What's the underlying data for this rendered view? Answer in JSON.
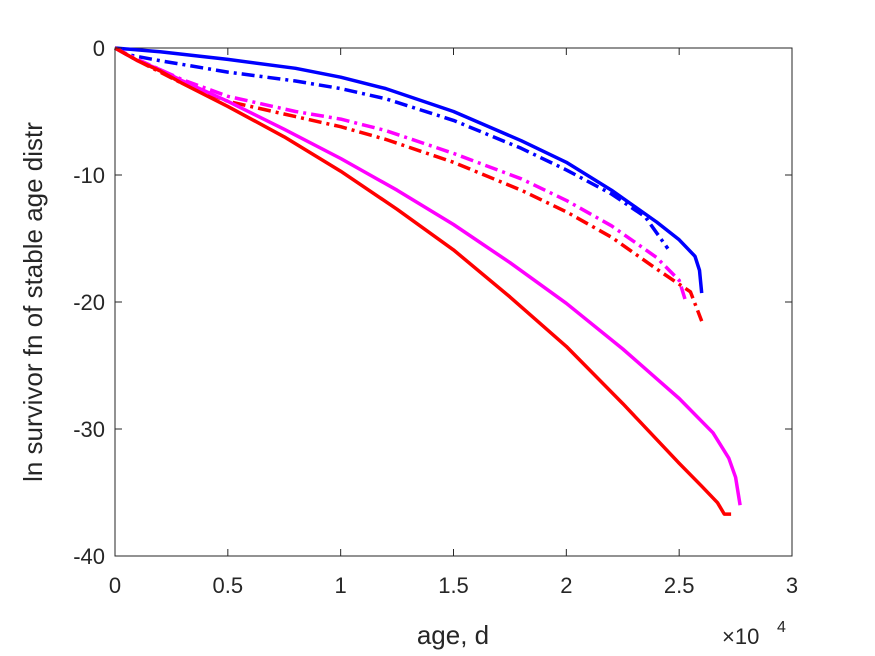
{
  "chart_data": {
    "type": "line",
    "title": "",
    "xlabel": "age, d",
    "ylabel": "ln survivor fn of stable age distr",
    "x_exponent_label": "×10",
    "x_exponent_power": "4",
    "xlim": [
      0,
      30000
    ],
    "ylim": [
      -40,
      0
    ],
    "x_ticks": [
      0,
      5000,
      10000,
      15000,
      20000,
      25000,
      30000
    ],
    "x_tick_labels": [
      "0",
      "0.5",
      "1",
      "1.5",
      "2",
      "2.5",
      "3"
    ],
    "y_ticks": [
      0,
      -10,
      -20,
      -30,
      -40
    ],
    "y_tick_labels": [
      "0",
      "-10",
      "-20",
      "-30",
      "-40"
    ],
    "grid": false,
    "series": [
      {
        "color": "#0000ff",
        "style": "solid",
        "x": [
          0,
          2000,
          5000,
          8000,
          10000,
          12000,
          15000,
          18000,
          20000,
          22000,
          24000,
          25000,
          25700,
          25900,
          26000
        ],
        "y": [
          0,
          -0.3,
          -0.9,
          -1.6,
          -2.3,
          -3.2,
          -5.0,
          -7.3,
          -9.0,
          -11.2,
          -13.7,
          -15.1,
          -16.4,
          -17.5,
          -19.3
        ]
      },
      {
        "color": "#0000ff",
        "style": "dashdot",
        "x": [
          0,
          500,
          2000,
          5000,
          8000,
          10000,
          12000,
          15000,
          18000,
          20000,
          22000,
          23500,
          24500
        ],
        "y": [
          0,
          -0.5,
          -1.0,
          -1.9,
          -2.6,
          -3.2,
          -4.0,
          -5.7,
          -7.9,
          -9.6,
          -11.5,
          -13.3,
          -15.8
        ]
      },
      {
        "color": "#ff00ff",
        "style": "dashdot",
        "x": [
          0,
          1000,
          2000,
          3000,
          5000,
          8000,
          10000,
          12000,
          15000,
          18000,
          20000,
          22000,
          24000,
          25000,
          25300
        ],
        "y": [
          0,
          -0.9,
          -1.7,
          -2.5,
          -3.8,
          -5.0,
          -5.6,
          -6.5,
          -8.3,
          -10.3,
          -12.0,
          -14.0,
          -16.5,
          -18.3,
          -20.0
        ]
      },
      {
        "color": "#ff0000",
        "style": "dashdot",
        "x": [
          0,
          1000,
          2000,
          3000,
          5000,
          8000,
          10000,
          12000,
          15000,
          18000,
          20000,
          22000,
          24000,
          25500,
          26000
        ],
        "y": [
          0,
          -1.0,
          -1.9,
          -2.8,
          -4.2,
          -5.4,
          -6.2,
          -7.2,
          -9.0,
          -11.2,
          -12.9,
          -14.9,
          -17.4,
          -19.2,
          -21.5
        ]
      },
      {
        "color": "#ff00ff",
        "style": "solid",
        "x": [
          0,
          1000,
          2000,
          3000,
          5000,
          7500,
          10000,
          12500,
          15000,
          17500,
          20000,
          22500,
          25000,
          26500,
          27200,
          27500,
          27700
        ],
        "y": [
          0,
          -1.0,
          -1.7,
          -2.6,
          -4.2,
          -6.4,
          -8.7,
          -11.2,
          -13.9,
          -16.9,
          -20.1,
          -23.7,
          -27.6,
          -30.3,
          -32.3,
          -33.8,
          -36.0
        ]
      },
      {
        "color": "#ff0000",
        "style": "solid",
        "x": [
          0,
          1000,
          2000,
          3000,
          5000,
          7500,
          10000,
          12500,
          15000,
          17500,
          20000,
          22500,
          25000,
          26000,
          26700,
          27000,
          27300
        ],
        "y": [
          0,
          -1.0,
          -1.8,
          -2.8,
          -4.6,
          -7.0,
          -9.7,
          -12.7,
          -15.9,
          -19.6,
          -23.5,
          -28.0,
          -32.7,
          -34.5,
          -35.8,
          -36.7,
          -36.7
        ]
      }
    ]
  }
}
